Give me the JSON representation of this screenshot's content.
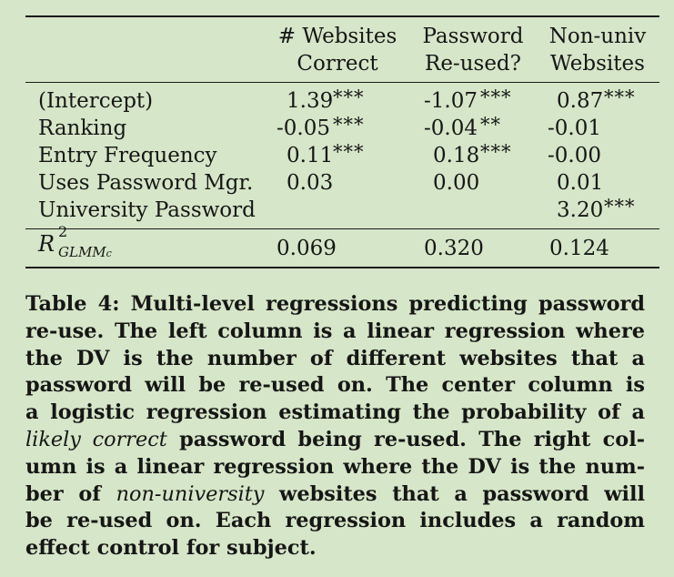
{
  "table": {
    "headers": [
      {
        "line1": "# Websites",
        "line2": "Correct"
      },
      {
        "line1": "Password",
        "line2": "Re-used?"
      },
      {
        "line1": "Non-univ",
        "line2": "Websites"
      }
    ],
    "rows": [
      {
        "label": "(Intercept)",
        "cells": [
          {
            "v": "1.39",
            "s": "***"
          },
          {
            "v": "-1.07",
            "s": "***"
          },
          {
            "v": "0.87",
            "s": "***"
          }
        ]
      },
      {
        "label": "Ranking",
        "cells": [
          {
            "v": "-0.05",
            "s": "***"
          },
          {
            "v": "-0.04",
            "s": "**"
          },
          {
            "v": "-0.01",
            "s": ""
          }
        ]
      },
      {
        "label": "Entry Frequency",
        "cells": [
          {
            "v": "0.11",
            "s": "***"
          },
          {
            "v": "0.18",
            "s": "***"
          },
          {
            "v": "-0.00",
            "s": ""
          }
        ]
      },
      {
        "label": "Uses Password Mgr.",
        "cells": [
          {
            "v": "0.03",
            "s": ""
          },
          {
            "v": "0.00",
            "s": ""
          },
          {
            "v": "0.01",
            "s": ""
          }
        ]
      },
      {
        "label": "University Password",
        "cells": [
          {
            "v": "",
            "s": ""
          },
          {
            "v": "",
            "s": ""
          },
          {
            "v": "3.20",
            "s": "***"
          }
        ]
      }
    ],
    "r2": {
      "base": "R",
      "sup": "2",
      "sub": "GLMM",
      "subsub": "c",
      "values": [
        "0.069",
        "0.320",
        "0.124"
      ]
    }
  },
  "caption": {
    "lines": [
      "Table 4: Multi-level regressions predicting password",
      "re-use. The left column is a linear regression where",
      "the DV is the number of different websites that a",
      "password will be re-used on. The center column is",
      "a logistic regression estimating the probability of a",
      "likely correct password being re-used. The right col-",
      "umn is a linear regression where the DV is the num-",
      "ber of non-university websites that a password will",
      "be re-used on. Each regression includes a random",
      "effect control for subject."
    ],
    "italic_1": "likely correct",
    "italic_2": "non-university",
    "line6_rest": " password being re-used. The right col-",
    "line8_a": "ber of ",
    "line8_b": " websites that a password will"
  }
}
